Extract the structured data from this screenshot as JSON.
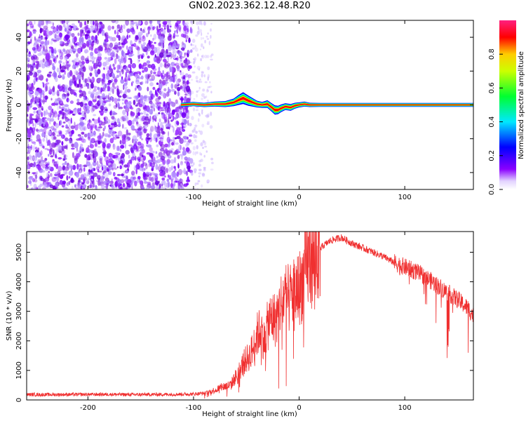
{
  "figure": {
    "title": "GN02.2023.362.12.48.R20"
  },
  "chart_data": [
    {
      "type": "heatmap",
      "title": "GN02.2023.362.12.48.R20",
      "xlabel": "Height of straight line (km)",
      "ylabel": "Frequency (Hz)",
      "xlim": [
        -258,
        165
      ],
      "ylim": [
        -50,
        50
      ],
      "x_ticks": [
        -200,
        -100,
        0,
        100
      ],
      "y_ticks": [
        -40,
        -20,
        0,
        20,
        40
      ],
      "x_tick_labels": [
        "-200",
        "-100",
        "0",
        "100"
      ],
      "y_tick_labels": [
        "-40",
        "-20",
        "0",
        "20",
        "40"
      ],
      "colorbar": {
        "label": "Normalized spectral amplitude",
        "range": [
          0,
          1
        ],
        "ticks": [
          0.0,
          0.2,
          0.4,
          0.6,
          0.8
        ],
        "tick_labels": [
          "0.0",
          "0.2",
          "0.4",
          "0.6",
          "0.8"
        ],
        "colormap": [
          "#ffffff",
          "#ddc8ff",
          "#8800ff",
          "#0000ff",
          "#00e6ff",
          "#00ff00",
          "#ffee00",
          "#ff0000",
          "#ff2080"
        ]
      },
      "noise_region": {
        "x_range": [
          -258,
          -102
        ],
        "freq_range": [
          -50,
          50
        ],
        "approx_amplitude": 0.12
      },
      "sparse_noise_region": {
        "x_range": [
          -102,
          -82
        ],
        "approx_amplitude": 0.05
      },
      "signal_ridge": {
        "x": [
          -112,
          -100,
          -90,
          -80,
          -70,
          -62,
          -57,
          -53,
          -48,
          -44,
          -40,
          -35,
          -30,
          -26,
          -23,
          -20,
          -17,
          -13,
          -8,
          -4,
          0,
          5,
          10,
          20,
          40,
          60,
          80,
          100,
          120,
          140,
          165
        ],
        "freq": [
          0,
          0.5,
          0,
          0.5,
          0.5,
          1.5,
          3,
          4,
          2.5,
          1.5,
          0.5,
          0,
          0.5,
          -1.5,
          -3,
          -3,
          -2,
          -1,
          -1.5,
          -0.5,
          0,
          0.5,
          0,
          0,
          0,
          0,
          0,
          0,
          0,
          0,
          0
        ],
        "width_hz": [
          2.5,
          2.5,
          2.5,
          3,
          3.5,
          4.5,
          6,
          7,
          6,
          5,
          4,
          3.5,
          4.5,
          5,
          5.5,
          5,
          4.5,
          4,
          4,
          3.5,
          3,
          3,
          2.5,
          2.2,
          2.2,
          2.2,
          2.2,
          2.2,
          2.2,
          2.2,
          2.2
        ]
      },
      "grid": false
    },
    {
      "type": "line",
      "xlabel": "Height of straight line (km)",
      "ylabel": "SNR (10 * v/v)",
      "xlim": [
        -258,
        165
      ],
      "ylim": [
        0,
        5700
      ],
      "x_ticks": [
        -200,
        -100,
        0,
        100
      ],
      "y_ticks": [
        0,
        1000,
        2000,
        3000,
        4000,
        5000
      ],
      "x_tick_labels": [
        "-200",
        "-100",
        "0",
        "100"
      ],
      "y_tick_labels": [
        "0",
        "1000",
        "2000",
        "3000",
        "4000",
        "5000"
      ],
      "series": [
        {
          "color": "#f03030",
          "x": [
            -258,
            -240,
            -220,
            -200,
            -180,
            -160,
            -140,
            -120,
            -100,
            -90,
            -80,
            -72,
            -65,
            -58,
            -52,
            -47,
            -43,
            -40,
            -36,
            -33,
            -30,
            -26,
            -22,
            -18,
            -14,
            -10,
            -6,
            -2,
            2,
            6,
            10,
            14,
            18,
            22,
            26,
            30,
            35,
            40,
            45,
            50,
            60,
            70,
            80,
            90,
            100,
            110,
            120,
            130,
            140,
            150,
            160,
            165
          ],
          "y": [
            180,
            180,
            185,
            185,
            190,
            180,
            185,
            190,
            200,
            230,
            330,
            450,
            500,
            900,
            1300,
            1500,
            1800,
            2200,
            2400,
            2000,
            2500,
            2800,
            2700,
            3200,
            3500,
            3400,
            3600,
            3700,
            3900,
            4400,
            4700,
            4800,
            5000,
            5200,
            5300,
            5400,
            5450,
            5500,
            5400,
            5300,
            5150,
            5000,
            4850,
            4650,
            4500,
            4350,
            4150,
            3900,
            3650,
            3400,
            3100,
            2850
          ]
        }
      ],
      "grid": false
    }
  ]
}
